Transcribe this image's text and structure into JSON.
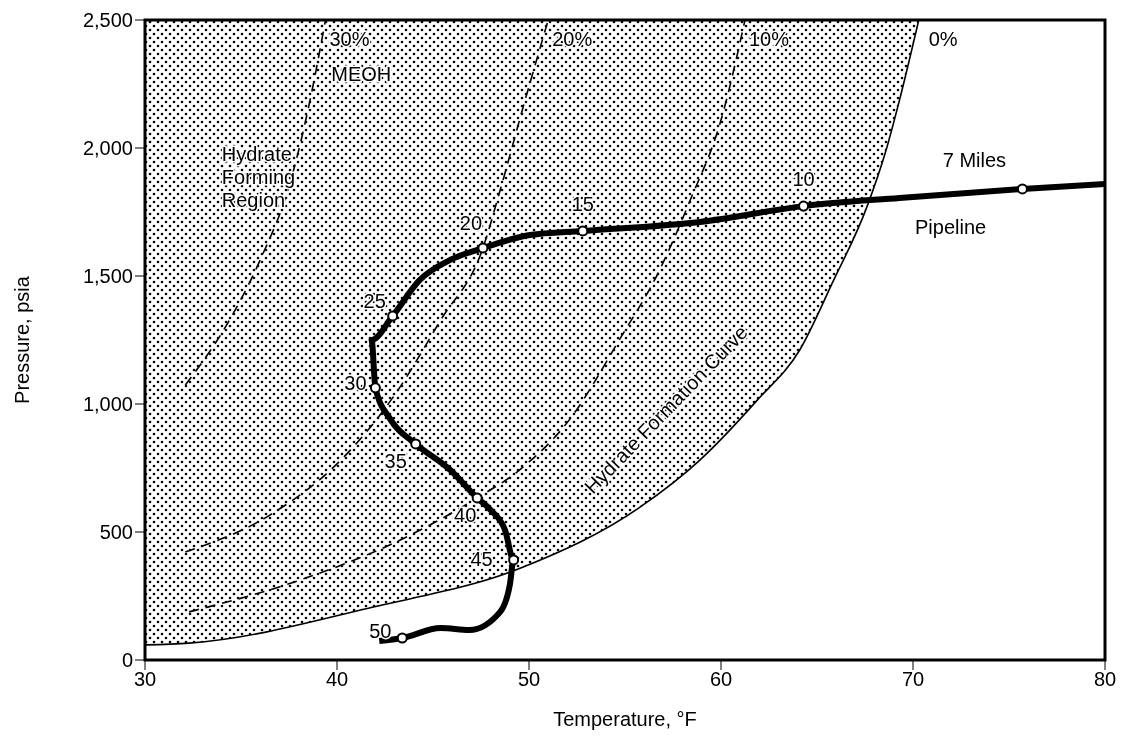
{
  "chart_data": {
    "type": "line",
    "xlabel": "Temperature, °F",
    "ylabel": "Pressure, psia",
    "xlim": [
      30,
      80
    ],
    "xticks": [
      30,
      40,
      50,
      60,
      70,
      80
    ],
    "ylim": [
      0,
      2500
    ],
    "yticks": [
      {
        "value": 0,
        "label": "0"
      },
      {
        "value": 500,
        "label": "500"
      },
      {
        "value": 1000,
        "label": "1,000"
      },
      {
        "value": 1500,
        "label": "1,500"
      },
      {
        "value": 2000,
        "label": "2,000"
      },
      {
        "value": 2500,
        "label": "2,500"
      }
    ],
    "series": [
      {
        "name": "0%",
        "color": "#000000",
        "line_style": "solid",
        "marker": "none",
        "x": [
          30,
          32.3,
          41.9,
          49.7,
          55.8,
          58.9,
          61.9,
          64.1,
          65.8,
          67.6,
          68.6,
          69.3,
          70.3
        ],
        "values": [
          59,
          66,
          207,
          363,
          598,
          781,
          1016,
          1211,
          1473,
          1770,
          1992,
          2188,
          2500
        ],
        "lower": [
          59,
          66,
          207,
          363,
          598,
          781,
          1016,
          1211,
          1473,
          1770,
          1992,
          2188,
          2500
        ],
        "upper": [
          2500,
          2500,
          2500,
          2500,
          2500,
          2500,
          2500,
          2500,
          2500,
          2500,
          2500,
          2500,
          2500
        ]
      },
      {
        "name": "10%",
        "color": "#000000",
        "line_style": "dashed",
        "marker": "none",
        "x": [
          32.3,
          38.1,
          43.3,
          47.3,
          49.5,
          52.1,
          54.7,
          56.8,
          58.4,
          60.0,
          61.25
        ],
        "values": [
          188,
          313,
          469,
          633,
          742,
          938,
          1250,
          1523,
          1797,
          2109,
          2500
        ]
      },
      {
        "name": "20%",
        "color": "#000000",
        "line_style": "dashed",
        "marker": "none",
        "x": [
          32.1,
          36.5,
          40.2,
          43.0,
          45.4,
          47.6,
          48.5,
          49.8,
          51.0
        ],
        "values": [
          422,
          566,
          781,
          1035,
          1328,
          1609,
          1836,
          2188,
          2500
        ]
      },
      {
        "name": "30%",
        "color": "#000000",
        "line_style": "dashed",
        "marker": "none",
        "x": [
          32.1,
          34.4,
          36.0,
          37.6,
          38.6,
          39.4
        ],
        "values": [
          1074,
          1328,
          1563,
          1875,
          2188,
          2500
        ]
      },
      {
        "name": "Pipeline",
        "color": "#000000",
        "line_style": "solid",
        "marker": "none",
        "x": [
          42.2,
          43.4,
          45.4,
          46.9,
          48.5,
          49.0,
          49.2,
          48.75,
          48.0,
          47.3,
          45.9,
          44.1,
          42.8,
          42.0,
          41.8,
          42.9,
          44.3,
          45.9,
          47.6,
          50.05,
          52.8,
          58.9,
          64.3,
          69.3,
          75.7,
          80
        ],
        "values": [
          74,
          86,
          125,
          117,
          188,
          293,
          391,
          508,
          586,
          633,
          742,
          844,
          938,
          1063,
          1250,
          1344,
          1484,
          1563,
          1609,
          1660,
          1676,
          1711,
          1773,
          1805,
          1840,
          1859
        ]
      },
      {
        "type": "scatter",
        "color": "#ffffff",
        "marker": "circle",
        "x": [
          75.7,
          64.3,
          52.8,
          47.6,
          42.9,
          42.0,
          44.1,
          47.3,
          49.2,
          43.4
        ],
        "values": [
          1840,
          1773,
          1676,
          1609,
          1344,
          1063,
          844,
          633,
          391,
          86
        ]
      }
    ],
    "annotations": [
      "MEOH",
      "Hydrate Forming Region",
      "Hydrate Formation Curve",
      {
        "text": "7 Miles",
        "x": 75.7,
        "y": 1840
      },
      {
        "text": "10",
        "x": 64.3,
        "y": 1773
      },
      {
        "text": "15",
        "x": 52.8,
        "y": 1676
      },
      {
        "text": "20",
        "x": 47.6,
        "y": 1609
      },
      {
        "text": "25",
        "x": 42.9,
        "y": 1344
      },
      {
        "text": "30",
        "x": 42.0,
        "y": 1063
      },
      {
        "text": "35",
        "x": 44.1,
        "y": 844
      },
      {
        "text": "40",
        "x": 47.3,
        "y": 633
      },
      {
        "text": "45",
        "x": 49.2,
        "y": 391
      },
      {
        "text": "50",
        "x": 43.4,
        "y": 86
      }
    ]
  }
}
